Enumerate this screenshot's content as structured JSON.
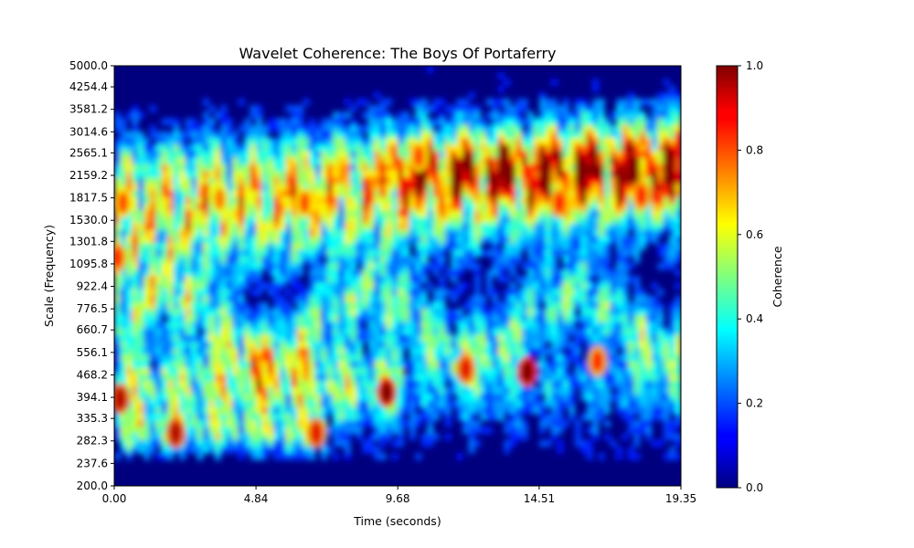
{
  "chart_data": {
    "type": "heatmap",
    "title": "Wavelet Coherence: The Boys Of Portaferry",
    "xlabel": "Time (seconds)",
    "ylabel": "Scale (Frequency)",
    "xlim": [
      0.0,
      19.35
    ],
    "x_ticks": [
      "0.00",
      "4.84",
      "9.68",
      "14.51",
      "19.35"
    ],
    "x_tick_values": [
      0.0,
      4.84,
      9.68,
      14.51,
      19.35
    ],
    "y_ticks": [
      "200.0",
      "237.6",
      "282.3",
      "335.3",
      "394.1",
      "468.2",
      "556.1",
      "660.7",
      "776.5",
      "922.4",
      "1095.8",
      "1301.8",
      "1530.0",
      "1817.5",
      "2159.2",
      "2565.1",
      "3014.6",
      "3581.2",
      "4254.4",
      "5000.0"
    ],
    "y_scale": "log",
    "ylim": [
      200.0,
      5000.0
    ],
    "colormap": "jet",
    "colorbar": {
      "label": "Coherence",
      "range": [
        0.0,
        1.0
      ],
      "ticks": [
        "0.0",
        "0.2",
        "0.4",
        "0.6",
        "0.8",
        "1.0"
      ],
      "tick_values": [
        0.0,
        0.2,
        0.4,
        0.6,
        0.8,
        1.0
      ]
    },
    "regions": [
      {
        "t": 0.2,
        "scale": 390,
        "coherence": 0.95
      },
      {
        "t": 2.1,
        "scale": 300,
        "coherence": 0.95
      },
      {
        "t": 6.9,
        "scale": 300,
        "coherence": 0.9
      },
      {
        "t": 9.3,
        "scale": 410,
        "coherence": 1.0
      },
      {
        "t": 12.0,
        "scale": 490,
        "coherence": 0.9
      },
      {
        "t": 14.1,
        "scale": 480,
        "coherence": 1.0
      },
      {
        "t": 16.5,
        "scale": 520,
        "coherence": 0.85
      },
      {
        "t": 0.3,
        "scale": 1750,
        "coherence": 0.8
      },
      {
        "t": 3.6,
        "scale": 1800,
        "coherence": 0.75
      },
      {
        "t": 6.5,
        "scale": 1750,
        "coherence": 0.8
      },
      {
        "t": 10.4,
        "scale": 2500,
        "coherence": 0.8
      },
      {
        "t": 15.2,
        "scale": 1750,
        "coherence": 0.85
      },
      {
        "t": 18.0,
        "scale": 1850,
        "coherence": 0.85
      },
      {
        "t": 0.1,
        "scale": 1150,
        "coherence": 0.85
      }
    ],
    "description_bands": [
      {
        "scale_range": [
          200,
          260
        ],
        "coherence_level": "low"
      },
      {
        "scale_range": [
          260,
          700
        ],
        "coherence_level": "mixed"
      },
      {
        "scale_range": [
          700,
          2800
        ],
        "coherence_level": "high"
      },
      {
        "scale_range": [
          2800,
          5000
        ],
        "coherence_level": "low"
      }
    ]
  }
}
